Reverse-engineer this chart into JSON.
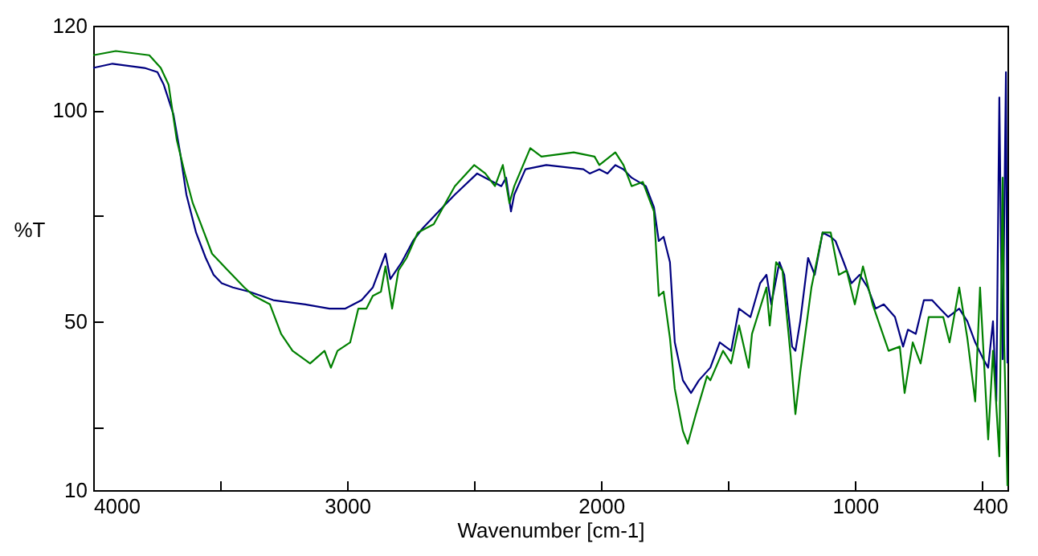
{
  "chart_data": {
    "type": "line",
    "xlabel": "Wavenumber [cm-1]",
    "ylabel": "%T",
    "xlim": [
      4000,
      400
    ],
    "ylim": [
      10,
      120
    ],
    "xticks": [
      4000,
      {
        "value": 3500,
        "label": null
      },
      3000,
      {
        "value": 2500,
        "label": null
      },
      2000,
      {
        "value": 1500,
        "label": null
      },
      1000,
      {
        "value": 500,
        "label": null
      },
      400
    ],
    "yticks": [
      10,
      {
        "value": 25,
        "label": null
      },
      50,
      {
        "value": 75,
        "label": null
      },
      100,
      120
    ],
    "grid": false,
    "line_style": "solid",
    "marker": "none",
    "series": [
      {
        "color": "#000080",
        "x": [
          4000,
          3924,
          3798,
          3747,
          3722,
          3684,
          3658,
          3633,
          3595,
          3557,
          3526,
          3494,
          3450,
          3386,
          3291,
          3165,
          3070,
          3007,
          2943,
          2899,
          2849,
          2830,
          2785,
          2741,
          2703,
          2640,
          2576,
          2488,
          2425,
          2393,
          2374,
          2355,
          2342,
          2298,
          2216,
          2070,
          2045,
          2007,
          1975,
          1944,
          1912,
          1880,
          1824,
          1792,
          1773,
          1754,
          1729,
          1710,
          1678,
          1646,
          1615,
          1570,
          1533,
          1488,
          1457,
          1412,
          1374,
          1349,
          1330,
          1298,
          1279,
          1248,
          1235,
          1216,
          1185,
          1159,
          1128,
          1096,
          1077,
          1045,
          1014,
          982,
          950,
          919,
          887,
          843,
          811,
          792,
          761,
          729,
          697,
          666,
          634,
          590,
          558,
          527,
          495,
          476,
          457,
          444,
          432,
          425,
          419,
          406,
          400
        ],
        "values": [
          110,
          111,
          110,
          109,
          106,
          99,
          90,
          80,
          71,
          65,
          61,
          59,
          58,
          57,
          55,
          54,
          53,
          53,
          55,
          58,
          66,
          60,
          64,
          69,
          72,
          76,
          80,
          85,
          83,
          82,
          84,
          76,
          80,
          86,
          87,
          86,
          85,
          86,
          85,
          87,
          86,
          84,
          82,
          77,
          69,
          70,
          64,
          45,
          36,
          33,
          36,
          39,
          45,
          43,
          53,
          51,
          59,
          61,
          54,
          64,
          61,
          44,
          43,
          50,
          65,
          61,
          71,
          70,
          69,
          64,
          59,
          61,
          58,
          53,
          54,
          51,
          44,
          48,
          47,
          55,
          55,
          53,
          51,
          53,
          50,
          45,
          41,
          39,
          50,
          31,
          103,
          66,
          41,
          109,
          40
        ]
      },
      {
        "color": "#008000",
        "x": [
          4000,
          3911,
          3779,
          3734,
          3703,
          3671,
          3639,
          3608,
          3576,
          3532,
          3469,
          3405,
          3367,
          3304,
          3260,
          3215,
          3146,
          3089,
          3064,
          3038,
          2988,
          2956,
          2924,
          2899,
          2867,
          2849,
          2823,
          2798,
          2766,
          2722,
          2659,
          2576,
          2500,
          2456,
          2418,
          2387,
          2361,
          2342,
          2279,
          2235,
          2108,
          2026,
          2007,
          1944,
          1912,
          1880,
          1836,
          1792,
          1773,
          1754,
          1729,
          1710,
          1678,
          1659,
          1627,
          1583,
          1570,
          1520,
          1488,
          1457,
          1419,
          1406,
          1349,
          1336,
          1311,
          1286,
          1254,
          1235,
          1216,
          1172,
          1128,
          1096,
          1064,
          1033,
          1001,
          969,
          931,
          868,
          824,
          805,
          773,
          742,
          710,
          653,
          628,
          590,
          558,
          527,
          508,
          476,
          457,
          432,
          419,
          413,
          400
        ],
        "values": [
          113,
          114,
          113,
          110,
          106,
          93,
          85,
          78,
          73,
          66,
          62,
          58,
          56,
          54,
          47,
          43,
          40,
          43,
          39,
          43,
          45,
          53,
          53,
          56,
          57,
          63,
          53,
          62,
          65,
          71,
          73,
          82,
          87,
          85,
          82,
          87,
          78,
          82,
          91,
          89,
          90,
          89,
          87,
          90,
          87,
          82,
          83,
          76,
          56,
          57,
          46,
          34,
          24,
          21,
          28,
          37,
          36,
          43,
          40,
          49,
          39,
          47,
          58,
          49,
          64,
          62,
          42,
          28,
          38,
          58,
          71,
          71,
          61,
          62,
          54,
          63,
          54,
          43,
          44,
          33,
          45,
          40,
          51,
          51,
          45,
          58,
          46,
          31,
          58,
          22,
          43,
          18,
          84,
          45,
          11
        ]
      }
    ]
  }
}
